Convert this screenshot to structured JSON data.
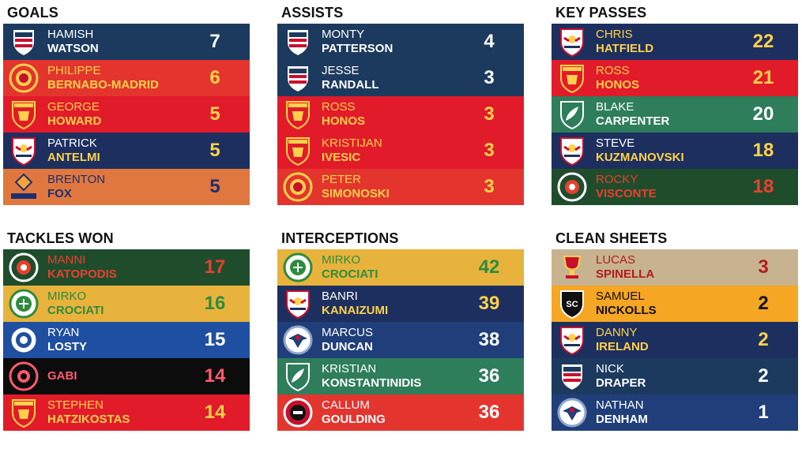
{
  "panels": [
    {
      "title": "GOALS",
      "rows": [
        {
          "first": "HAMISH",
          "last": "WATSON",
          "value": "7",
          "bg": "#1c3a5e",
          "first_color": "#ffffff",
          "last_color": "#ffffff",
          "value_color": "#ffffff",
          "logo": "dunedin-crest-icon"
        },
        {
          "first": "PHILIPPE",
          "last": "BERNABO-MADRID",
          "value": "6",
          "bg": "#e3352e",
          "first_color": "#ffd24a",
          "last_color": "#ffd24a",
          "value_color": "#ffd24a",
          "logo": "united-crest-icon"
        },
        {
          "first": "GEORGE",
          "last": "HOWARD",
          "value": "5",
          "bg": "#e21b2b",
          "first_color": "#ffd24a",
          "last_color": "#ffd24a",
          "value_color": "#ffd24a",
          "logo": "preston-lion-crest-icon"
        },
        {
          "first": "PATRICK",
          "last": "ANTELMI",
          "value": "5",
          "bg": "#1d2f5e",
          "first_color": "#ffffff",
          "last_color": "#ffd24a",
          "value_color": "#ffd24a",
          "logo": "red-bull-crest-icon"
        },
        {
          "first": "BRENTON",
          "last": "FOX",
          "value": "5",
          "bg": "#e0773f",
          "first_color": "#1d2f6e",
          "last_color": "#1d2f6e",
          "value_color": "#1d2f6e",
          "logo": "lions-fc-logo-icon"
        }
      ]
    },
    {
      "title": "ASSISTS",
      "rows": [
        {
          "first": "MONTY",
          "last": "PATTERSON",
          "value": "4",
          "bg": "#1c3a5e",
          "first_color": "#ffffff",
          "last_color": "#ffffff",
          "value_color": "#ffffff",
          "logo": "dunedin-crest-icon"
        },
        {
          "first": "JESSE",
          "last": "RANDALL",
          "value": "3",
          "bg": "#1c3a5e",
          "first_color": "#ffffff",
          "last_color": "#ffffff",
          "value_color": "#ffffff",
          "logo": "dunedin-crest-icon"
        },
        {
          "first": "ROSS",
          "last": "HONOS",
          "value": "3",
          "bg": "#e21b2b",
          "first_color": "#ffd24a",
          "last_color": "#ffd24a",
          "value_color": "#ffd24a",
          "logo": "preston-lion-crest-icon"
        },
        {
          "first": "KRISTIJAN",
          "last": "IVESIC",
          "value": "3",
          "bg": "#e21b2b",
          "first_color": "#ffd24a",
          "last_color": "#ffd24a",
          "value_color": "#ffd24a",
          "logo": "preston-lion-crest-icon"
        },
        {
          "first": "PETER",
          "last": "SIMONOSKI",
          "value": "3",
          "bg": "#e3352e",
          "first_color": "#ffd24a",
          "last_color": "#ffd24a",
          "value_color": "#ffd24a",
          "logo": "united-crest-icon"
        }
      ]
    },
    {
      "title": "KEY PASSES",
      "rows": [
        {
          "first": "CHRIS",
          "last": "HATFIELD",
          "value": "22",
          "bg": "#1d2f5e",
          "first_color": "#ffd24a",
          "last_color": "#ffd24a",
          "value_color": "#ffd24a",
          "logo": "red-bull-crest-icon"
        },
        {
          "first": "ROSS",
          "last": "HONOS",
          "value": "21",
          "bg": "#e21b2b",
          "first_color": "#ffd24a",
          "last_color": "#ffd24a",
          "value_color": "#ffd24a",
          "logo": "preston-lion-crest-icon"
        },
        {
          "first": "BLAKE",
          "last": "CARPENTER",
          "value": "20",
          "bg": "#2e7d5b",
          "first_color": "#ffffff",
          "last_color": "#ffffff",
          "value_color": "#ffffff",
          "logo": "green-gully-crest-icon"
        },
        {
          "first": "STEVE",
          "last": "KUZMANOVSKI",
          "value": "18",
          "bg": "#1d2f5e",
          "first_color": "#ffffff",
          "last_color": "#ffd24a",
          "value_color": "#ffd24a",
          "logo": "red-bull-crest-icon"
        },
        {
          "first": "ROCKY",
          "last": "VISCONTE",
          "value": "18",
          "bg": "#1f4d2c",
          "first_color": "#e8402e",
          "last_color": "#e8402e",
          "value_color": "#e8402e",
          "logo": "green-round-crest-icon"
        }
      ]
    },
    {
      "title": "TACKLES WON",
      "rows": [
        {
          "first": "MANNI",
          "last": "KATOPODIS",
          "value": "17",
          "bg": "#1f4d2c",
          "first_color": "#e8402e",
          "last_color": "#e8402e",
          "value_color": "#e8402e",
          "logo": "green-round-crest-icon"
        },
        {
          "first": "MIRKO",
          "last": "CROCIATI",
          "value": "16",
          "bg": "#e8b33c",
          "first_color": "#2e8b3e",
          "last_color": "#2e8b3e",
          "value_color": "#2e8b3e",
          "logo": "green-ball-crest-icon"
        },
        {
          "first": "RYAN",
          "last": "LOSTY",
          "value": "15",
          "bg": "#1f4fa0",
          "first_color": "#ffffff",
          "last_color": "#ffffff",
          "value_color": "#ffffff",
          "logo": "blue-round-crest-icon"
        },
        {
          "first": "",
          "last": "GABI",
          "value": "14",
          "bg": "#0c0c0c",
          "first_color": "#ff5a6e",
          "last_color": "#ff5a6e",
          "value_color": "#ff5a6e",
          "logo": "black-pink-crest-icon"
        },
        {
          "first": "STEPHEN",
          "last": "HATZIKOSTAS",
          "value": "14",
          "bg": "#e21b2b",
          "first_color": "#ffd24a",
          "last_color": "#ffd24a",
          "value_color": "#ffd24a",
          "logo": "preston-lion-crest-icon"
        }
      ]
    },
    {
      "title": "INTERCEPTIONS",
      "rows": [
        {
          "first": "MIRKO",
          "last": "CROCIATI",
          "value": "42",
          "bg": "#e8b33c",
          "first_color": "#2e8b3e",
          "last_color": "#2e8b3e",
          "value_color": "#2e8b3e",
          "logo": "green-ball-crest-icon"
        },
        {
          "first": "BANRI",
          "last": "KANAIZUMI",
          "value": "39",
          "bg": "#1d2f5e",
          "first_color": "#ffffff",
          "last_color": "#ffd24a",
          "value_color": "#ffd24a",
          "logo": "red-bull-crest-icon"
        },
        {
          "first": "MARCUS",
          "last": "DUNCAN",
          "value": "38",
          "bg": "#1f3e7a",
          "first_color": "#ffffff",
          "last_color": "#ffffff",
          "value_color": "#ffffff",
          "logo": "eagle-crest-icon"
        },
        {
          "first": "KRISTIAN",
          "last": "KONSTANTINIDIS",
          "value": "36",
          "bg": "#2e7d5b",
          "first_color": "#ffffff",
          "last_color": "#ffffff",
          "value_color": "#ffffff",
          "logo": "green-gully-crest-icon"
        },
        {
          "first": "CALLUM",
          "last": "GOULDING",
          "value": "36",
          "bg": "#e3352e",
          "first_color": "#ffffff",
          "last_color": "#ffffff",
          "value_color": "#ffffff",
          "logo": "red-black-crest-icon"
        }
      ]
    },
    {
      "title": "CLEAN SHEETS",
      "rows": [
        {
          "first": "LUCAS",
          "last": "SPINELLA",
          "value": "3",
          "bg": "#c7b38f",
          "first_color": "#b31c1c",
          "last_color": "#b31c1c",
          "value_color": "#b31c1c",
          "logo": "trophy-crest-icon"
        },
        {
          "first": "SAMUEL",
          "last": "NICKOLLS",
          "value": "2",
          "bg": "#f5a623",
          "first_color": "#111111",
          "last_color": "#111111",
          "value_color": "#111111",
          "logo": "sc-shield-icon"
        },
        {
          "first": "DANNY",
          "last": "IRELAND",
          "value": "2",
          "bg": "#1d2f5e",
          "first_color": "#ffd24a",
          "last_color": "#ffd24a",
          "value_color": "#ffd24a",
          "logo": "red-bull-crest-icon"
        },
        {
          "first": "NICK",
          "last": "DRAPER",
          "value": "2",
          "bg": "#1c3a5e",
          "first_color": "#ffffff",
          "last_color": "#ffffff",
          "value_color": "#ffffff",
          "logo": "dunedin-crest-icon"
        },
        {
          "first": "NATHAN",
          "last": "DENHAM",
          "value": "1",
          "bg": "#1f3e7a",
          "first_color": "#ffffff",
          "last_color": "#ffffff",
          "value_color": "#ffffff",
          "logo": "eagle-crest-icon"
        }
      ]
    }
  ]
}
